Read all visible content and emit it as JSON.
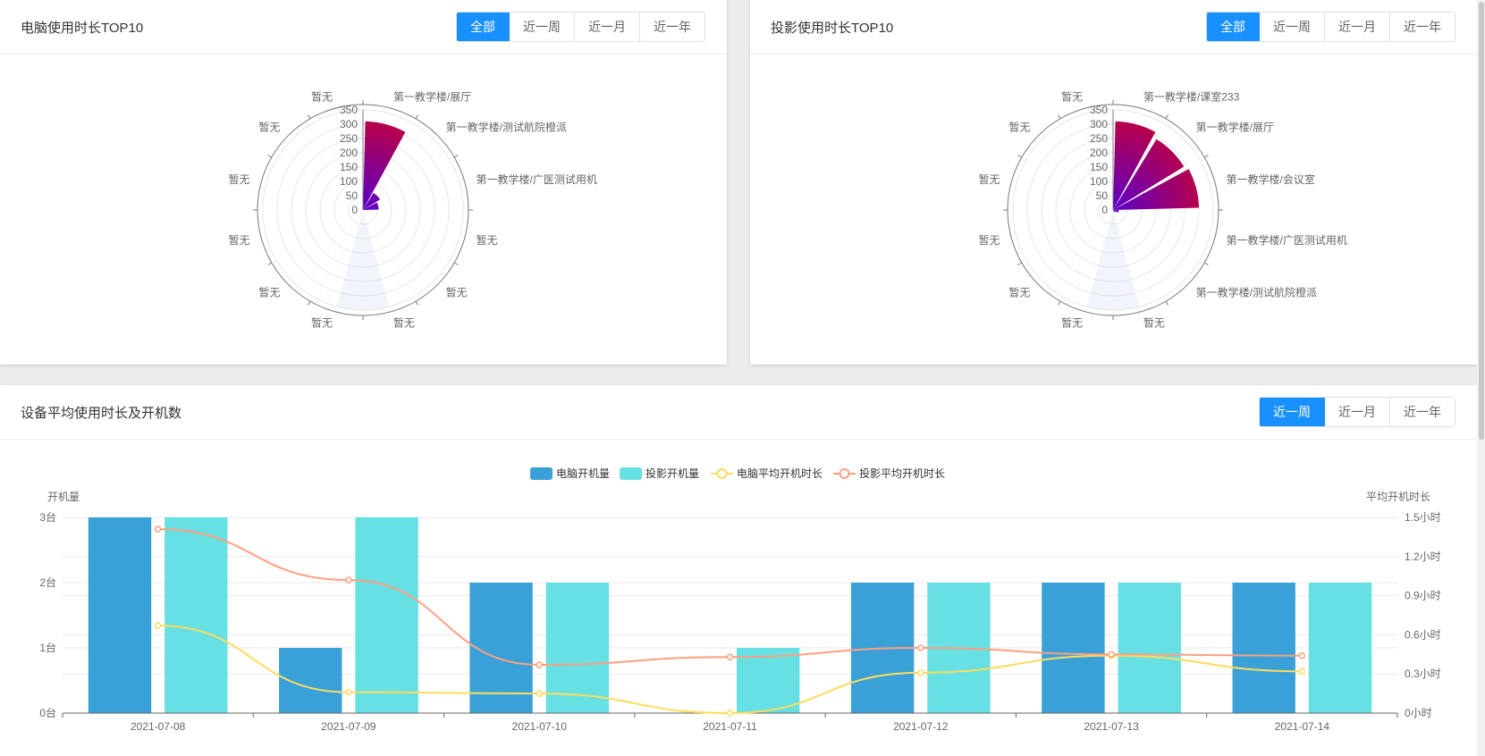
{
  "pc_panel": {
    "title": "电脑使用时长TOP10",
    "buttons": [
      {
        "label": "全部",
        "active": true
      },
      {
        "label": "近一周",
        "active": false
      },
      {
        "label": "近一月",
        "active": false
      },
      {
        "label": "近一年",
        "active": false
      }
    ]
  },
  "proj_panel": {
    "title": "投影使用时长TOP10",
    "buttons": [
      {
        "label": "全部",
        "active": true
      },
      {
        "label": "近一周",
        "active": false
      },
      {
        "label": "近一月",
        "active": false
      },
      {
        "label": "近一年",
        "active": false
      }
    ]
  },
  "bottom_panel": {
    "title": "设备平均使用时长及开机数",
    "buttons": [
      {
        "label": "近一周",
        "active": true
      },
      {
        "label": "近一月",
        "active": false
      },
      {
        "label": "近一年",
        "active": false
      }
    ]
  },
  "colors": {
    "pc_bar": "#3aa1d8",
    "proj_bar": "#67e0e3",
    "pc_line": "#ffdb5c",
    "proj_line": "#ff9f7f",
    "polar_top": "#c4003a",
    "polar_bottom": "#5a00c8",
    "accent": "#1890ff"
  },
  "chart_data": [
    {
      "type": "polar-bar",
      "title": "电脑使用时长TOP10",
      "radius_ticks": [
        "0",
        "50",
        "100",
        "150",
        "200",
        "250",
        "300",
        "350"
      ],
      "rmax": 350,
      "categories": [
        "第一教学楼/展厅",
        "第一教学楼/测试航院橙派",
        "第一教学楼/广医测试用机",
        "暂无",
        "暂无",
        "暂无",
        "暂无",
        "暂无",
        "暂无",
        "暂无",
        "暂无",
        "暂无"
      ],
      "values": [
        310,
        70,
        55,
        0,
        0,
        0,
        0,
        0,
        0,
        0,
        0,
        0
      ]
    },
    {
      "type": "polar-bar",
      "title": "投影使用时长TOP10",
      "radius_ticks": [
        "0",
        "50",
        "100",
        "150",
        "200",
        "250",
        "300",
        "350"
      ],
      "rmax": 350,
      "categories": [
        "第一教学楼/课室233",
        "第一教学楼/展厅",
        "第一教学楼/会议室",
        "第一教学楼/广医测试用机",
        "第一教学楼/测试航院橙派",
        "暂无",
        "暂无",
        "暂无",
        "暂无",
        "暂无",
        "暂无",
        "暂无"
      ],
      "values": [
        310,
        290,
        300,
        20,
        10,
        0,
        0,
        0,
        0,
        0,
        0,
        0
      ]
    },
    {
      "type": "bar+line",
      "title": "设备平均使用时长及开机数",
      "legend": [
        "电脑开机量",
        "投影开机量",
        "电脑平均开机时长",
        "投影平均开机时长"
      ],
      "categories": [
        "2021-07-08",
        "2021-07-09",
        "2021-07-10",
        "2021-07-11",
        "2021-07-12",
        "2021-07-13",
        "2021-07-14"
      ],
      "y_left": {
        "label": "开机量",
        "ticks": [
          "0台",
          "1台",
          "2台",
          "3台"
        ],
        "max": 3
      },
      "y_right": {
        "label": "平均开机时长",
        "ticks": [
          "0小时",
          "0.3小时",
          "0.6小时",
          "0.9小时",
          "1.2小时",
          "1.5小时"
        ],
        "max": 1.5
      },
      "series": [
        {
          "name": "电脑开机量",
          "type": "bar",
          "axis": "left",
          "values": [
            3,
            1,
            2,
            0,
            2,
            2,
            2
          ]
        },
        {
          "name": "投影开机量",
          "type": "bar",
          "axis": "left",
          "values": [
            3,
            3,
            2,
            1,
            2,
            2,
            2
          ]
        },
        {
          "name": "电脑平均开机时长",
          "type": "line",
          "axis": "right",
          "values": [
            0.67,
            0.16,
            0.15,
            0.0,
            0.31,
            0.44,
            0.32
          ]
        },
        {
          "name": "投影平均开机时长",
          "type": "line",
          "axis": "right",
          "values": [
            1.41,
            1.02,
            0.37,
            0.43,
            0.5,
            0.45,
            0.44
          ]
        }
      ]
    }
  ]
}
